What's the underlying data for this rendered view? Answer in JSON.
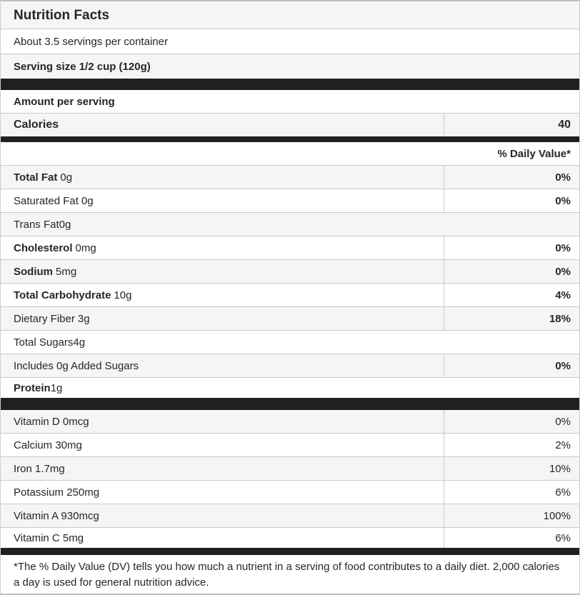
{
  "label": {
    "title": "Nutrition Facts",
    "servings_per_container": "About 3.5 servings per container",
    "serving_size": "Serving size 1/2 cup (120g)",
    "amount_per_serving": "Amount per serving",
    "calories_label": "Calories",
    "calories_value": "40",
    "daily_value_header": "% Daily Value*",
    "footnote": "*The % Daily Value (DV) tells you how much a nutrient in a serving of food contributes to a daily diet. 2,000 calories a day is used for general nutrition advice."
  },
  "nutrients": [
    {
      "name": "Total Fat",
      "amount": "0g",
      "dv": "0%",
      "bold": true,
      "shaded": true
    },
    {
      "name": "Saturated Fat",
      "amount": "0g",
      "dv": "0%",
      "bold": false,
      "shaded": false
    },
    {
      "name": "Trans Fat",
      "amount": "0g",
      "dv": "",
      "bold": false,
      "shaded": true
    },
    {
      "name": "Cholesterol",
      "amount": "0mg",
      "dv": "0%",
      "bold": true,
      "shaded": false
    },
    {
      "name": "Sodium",
      "amount": "5mg",
      "dv": "0%",
      "bold": true,
      "shaded": true
    },
    {
      "name": "Total Carbohydrate",
      "amount": "10g",
      "dv": "4%",
      "bold": true,
      "shaded": false
    },
    {
      "name": "Dietary Fiber",
      "amount": "3g",
      "dv": "18%",
      "bold": false,
      "shaded": true
    },
    {
      "name": "Total Sugars",
      "amount": "4g",
      "dv": "",
      "bold": false,
      "shaded": false
    },
    {
      "name": "Includes 0g Added Sugars",
      "amount": "",
      "dv": "0%",
      "bold": false,
      "shaded": true
    },
    {
      "name": "Protein",
      "amount": "1g",
      "dv": "",
      "bold": true,
      "shaded": false
    }
  ],
  "vitamins": [
    {
      "name": "Vitamin D 0mcg",
      "dv": "0%",
      "shaded": true
    },
    {
      "name": "Calcium 30mg",
      "dv": "2%",
      "shaded": false
    },
    {
      "name": "Iron 1.7mg",
      "dv": "10%",
      "shaded": true
    },
    {
      "name": "Potassium 250mg",
      "dv": "6%",
      "shaded": false
    },
    {
      "name": "Vitamin A 930mcg",
      "dv": "100%",
      "shaded": true
    },
    {
      "name": "Vitamin C 5mg",
      "dv": "6%",
      "shaded": false
    }
  ],
  "colors": {
    "separator_bar": "#231f20",
    "row_shaded": "#f5f5f5",
    "row_border": "#c9c9c9",
    "outer_border": "#bfbfbf",
    "text": "#262626"
  }
}
